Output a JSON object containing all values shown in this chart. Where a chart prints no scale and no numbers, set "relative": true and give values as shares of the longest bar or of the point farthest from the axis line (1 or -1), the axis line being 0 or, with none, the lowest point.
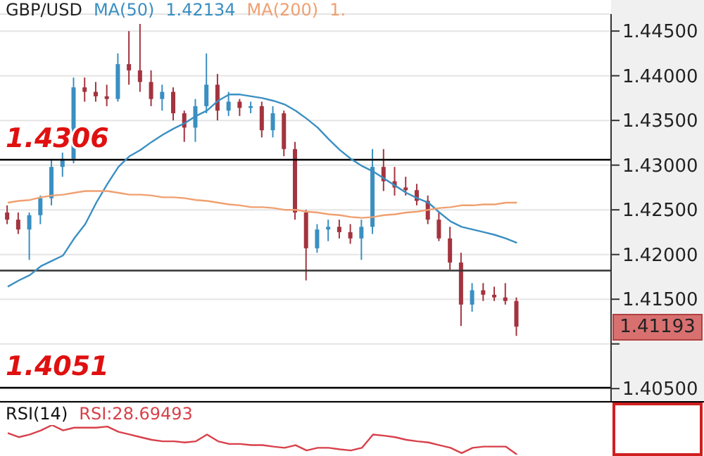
{
  "chart_data": [
    {
      "type": "candlestick",
      "title": "GBP/USD",
      "legend": "top left",
      "tick_labels": "y",
      "grid": "y",
      "categories": [
        null,
        null,
        null,
        null,
        null,
        null,
        null,
        null,
        null,
        null,
        null,
        null,
        null,
        null,
        null,
        null,
        null,
        null,
        null,
        null,
        null,
        null,
        null,
        null,
        null,
        null,
        null,
        null,
        null,
        null,
        null,
        null,
        null,
        null,
        null,
        null,
        null,
        null,
        null,
        null,
        null,
        null,
        null,
        null,
        null,
        null,
        null
      ],
      "ohlc": [
        [
          1.4247,
          1.4255,
          1.4234,
          1.4239
        ],
        [
          1.4239,
          1.4247,
          1.4223,
          1.4228
        ],
        [
          1.4228,
          1.4247,
          1.4194,
          1.4244
        ],
        [
          1.4244,
          1.4266,
          1.4234,
          1.4263
        ],
        [
          1.4263,
          1.4307,
          1.4255,
          1.4298
        ],
        [
          1.4298,
          1.4314,
          1.4287,
          1.4307
        ],
        [
          1.4307,
          1.4398,
          1.4302,
          1.4387
        ],
        [
          1.4387,
          1.4398,
          1.4371,
          1.4382
        ],
        [
          1.4382,
          1.4393,
          1.4371,
          1.4377
        ],
        [
          1.4377,
          1.439,
          1.4366,
          1.4374
        ],
        [
          1.4374,
          1.4425,
          1.4371,
          1.4413
        ],
        [
          1.4413,
          1.445,
          1.439,
          1.4406
        ],
        [
          1.4406,
          1.4458,
          1.4382,
          1.4393
        ],
        [
          1.4393,
          1.4406,
          1.4366,
          1.4374
        ],
        [
          1.4374,
          1.439,
          1.4361,
          1.4382
        ],
        [
          1.4382,
          1.4387,
          1.435,
          1.4358
        ],
        [
          1.4358,
          1.4361,
          1.4326,
          1.4342
        ],
        [
          1.4342,
          1.4374,
          1.4326,
          1.4366
        ],
        [
          1.4366,
          1.4425,
          1.4358,
          1.439
        ],
        [
          1.439,
          1.4402,
          1.435,
          1.4361
        ],
        [
          1.4361,
          1.4382,
          1.4355,
          1.4371
        ],
        [
          1.4371,
          1.4374,
          1.4355,
          1.4364
        ],
        [
          1.4364,
          1.4371,
          1.4358,
          1.4366
        ],
        [
          1.4366,
          1.4371,
          1.4331,
          1.4339
        ],
        [
          1.4339,
          1.4366,
          1.4331,
          1.4358
        ],
        [
          1.4358,
          1.4361,
          1.431,
          1.4318
        ],
        [
          1.4318,
          1.4326,
          1.4239,
          1.4247
        ],
        [
          1.4247,
          1.425,
          1.4171,
          1.4207
        ],
        [
          1.4207,
          1.4234,
          1.4202,
          1.4228
        ],
        [
          1.4228,
          1.4239,
          1.4215,
          1.4231
        ],
        [
          1.4231,
          1.4239,
          1.4218,
          1.4225
        ],
        [
          1.4225,
          1.4234,
          1.4212,
          1.4218
        ],
        [
          1.4218,
          1.4239,
          1.4194,
          1.4231
        ],
        [
          1.4231,
          1.4318,
          1.4223,
          1.4298
        ],
        [
          1.4298,
          1.4318,
          1.4271,
          1.4282
        ],
        [
          1.4282,
          1.4298,
          1.4266,
          1.4275
        ],
        [
          1.4275,
          1.4287,
          1.4266,
          1.4272
        ],
        [
          1.4272,
          1.4279,
          1.4255,
          1.426
        ],
        [
          1.426,
          1.4266,
          1.4234,
          1.4239
        ],
        [
          1.4239,
          1.4247,
          1.4215,
          1.4218
        ],
        [
          1.4218,
          1.4231,
          1.4183,
          1.4191
        ],
        [
          1.4191,
          1.4202,
          1.412,
          1.4144
        ],
        [
          1.4144,
          1.4168,
          1.4136,
          1.416
        ],
        [
          1.416,
          1.4168,
          1.4148,
          1.4155
        ],
        [
          1.4155,
          1.4164,
          1.4148,
          1.4152
        ],
        [
          1.4152,
          1.4168,
          1.4144,
          1.4148
        ],
        [
          1.4148,
          1.4152,
          1.4109,
          1.41193
        ]
      ],
      "colors": [
        "#a3343f",
        "#a3343f",
        "#3a8fc2",
        "#3a8fc2",
        "#3a8fc2",
        "#3a8fc2",
        "#3a8fc2",
        "#a3343f",
        "#a3343f",
        "#a3343f",
        "#3a8fc2",
        "#a3343f",
        "#a3343f",
        "#a3343f",
        "#3a8fc2",
        "#a3343f",
        "#a3343f",
        "#3a8fc2",
        "#3a8fc2",
        "#a3343f",
        "#3a8fc2",
        "#a3343f",
        "#3a8fc2",
        "#a3343f",
        "#3a8fc2",
        "#a3343f",
        "#a3343f",
        "#a3343f",
        "#3a8fc2",
        "#3a8fc2",
        "#a3343f",
        "#a3343f",
        "#3a8fc2",
        "#3a8fc2",
        "#a3343f",
        "#a3343f",
        "#a3343f",
        "#a3343f",
        "#a3343f",
        "#a3343f",
        "#a3343f",
        "#a3343f",
        "#3a8fc2",
        "#a3343f",
        "#a3343f",
        "#a3343f",
        "#a3343f"
      ],
      "series": [
        {
          "name": "MA(50)",
          "type": "line",
          "color": "#3a8fc2",
          "values": [
            1.4164,
            1.4171,
            1.4177,
            1.4187,
            1.4193,
            1.4199,
            1.4218,
            1.4234,
            1.4258,
            1.4279,
            1.4298,
            1.431,
            1.4317,
            1.4326,
            1.4334,
            1.4341,
            1.4347,
            1.4355,
            1.4361,
            1.4372,
            1.4379,
            1.4379,
            1.4377,
            1.4375,
            1.4372,
            1.4368,
            1.4361,
            1.4352,
            1.4342,
            1.4329,
            1.4317,
            1.4307,
            1.4299,
            1.4293,
            1.4285,
            1.4277,
            1.4269,
            1.4263,
            1.4258,
            1.4247,
            1.4237,
            1.4231,
            1.4228,
            1.4225,
            1.4222,
            1.4218,
            1.4213
          ]
        },
        {
          "name": "MA(200)",
          "type": "line",
          "color": "#f0a070",
          "values": [
            1.4258,
            1.426,
            1.4261,
            1.4264,
            1.4266,
            1.4267,
            1.4269,
            1.4271,
            1.4271,
            1.4271,
            1.4269,
            1.4267,
            1.4267,
            1.4266,
            1.4264,
            1.4264,
            1.4263,
            1.4261,
            1.426,
            1.4258,
            1.4256,
            1.4255,
            1.4253,
            1.4253,
            1.4252,
            1.425,
            1.425,
            1.4248,
            1.4247,
            1.4245,
            1.4244,
            1.4242,
            1.4241,
            1.4242,
            1.4244,
            1.4245,
            1.4247,
            1.4248,
            1.425,
            1.4252,
            1.4253,
            1.4255,
            1.4255,
            1.4256,
            1.4256,
            1.4258,
            1.4258
          ]
        }
      ],
      "ylim": [
        1.4036,
        1.4469
      ],
      "yticks": [
        {
          "value": 1.405,
          "label": "1.40500"
        },
        {
          "value": 1.41,
          "label": null
        },
        {
          "value": 1.415,
          "label": "1.41500"
        },
        {
          "value": 1.42,
          "label": "1.42000"
        },
        {
          "value": 1.425,
          "label": "1.42500"
        },
        {
          "value": 1.43,
          "label": "1.43000"
        },
        {
          "value": 1.435,
          "label": "1.43500"
        },
        {
          "value": 1.44,
          "label": "1.44000"
        },
        {
          "value": 1.445,
          "label": "1.44500"
        }
      ],
      "ref_lines": [
        {
          "axis": "y",
          "value": 1.4306,
          "label": "1.4306",
          "color": "#000000"
        },
        {
          "axis": "y",
          "value": 1.4182,
          "label": null,
          "color": "#333333"
        },
        {
          "axis": "y",
          "value": 1.4051,
          "label": "1.4051",
          "color": "#000000"
        }
      ],
      "annotations": [
        "1.42134",
        "1.",
        "1.41193"
      ]
    },
    {
      "type": "line",
      "title": "RSI(14)",
      "relative": true,
      "tick_labels": false,
      "categories": [
        null,
        null,
        null,
        null,
        null,
        null,
        null,
        null,
        null,
        null,
        null,
        null,
        null,
        null,
        null,
        null,
        null,
        null,
        null,
        null,
        null,
        null,
        null,
        null,
        null,
        null,
        null,
        null,
        null,
        null,
        null,
        null,
        null,
        null,
        null,
        null,
        null,
        null,
        null,
        null,
        null,
        null,
        null,
        null,
        null,
        null,
        null
      ],
      "series": [
        {
          "color": "#d8404a",
          "values": [
            0.73,
            0.59,
            0.68,
            0.82,
            1,
            0.82,
            0.91,
            0.91,
            0.91,
            0.95,
            0.77,
            0.68,
            0.59,
            0.5,
            0.45,
            0.45,
            0.41,
            0.45,
            0.68,
            0.45,
            0.36,
            0.36,
            0.32,
            0.32,
            0.27,
            0.23,
            0.32,
            0.14,
            0.23,
            0.23,
            0.18,
            0.14,
            0.23,
            0.68,
            0.64,
            0.59,
            0.5,
            0.45,
            0.41,
            0.32,
            0.23,
            0.05,
            0.23,
            0.27,
            0.27,
            0.27,
            0
          ]
        }
      ],
      "annotations": [
        "RSI:28.69493"
      ]
    }
  ]
}
